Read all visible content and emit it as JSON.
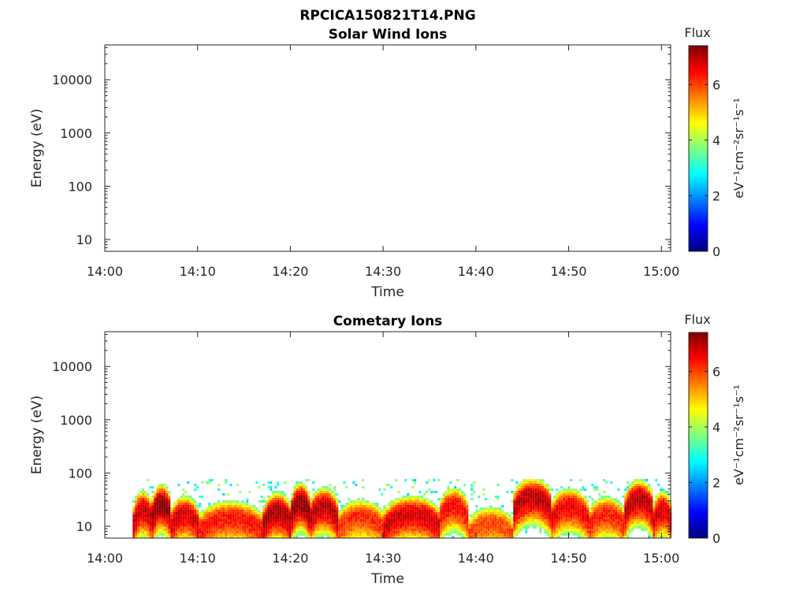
{
  "figure": {
    "title": "RPCICA150821T14.PNG"
  },
  "chart_data": [
    {
      "type": "heatmap",
      "title": "Solar Wind Ions",
      "xlabel": "Time",
      "ylabel": "Energy (eV)",
      "x_ticks": [
        "14:00",
        "14:10",
        "14:20",
        "14:30",
        "14:40",
        "14:50",
        "15:00"
      ],
      "x_range": [
        "14:00",
        "15:01"
      ],
      "y_scale": "log",
      "y_ticks": [
        10,
        100,
        1000,
        10000
      ],
      "y_tick_labels": [
        "10",
        "100",
        "1000",
        "10000"
      ],
      "y_range": [
        6,
        45000
      ],
      "colorbar": {
        "title": "Flux",
        "label": "eV⁻¹cm⁻²sr⁻¹s⁻¹",
        "range": [
          0,
          7.4
        ],
        "ticks": [
          0,
          2,
          4,
          6
        ],
        "colormap": "jet"
      },
      "bands": []
    },
    {
      "type": "heatmap",
      "title": "Cometary Ions",
      "xlabel": "Time",
      "ylabel": "Energy (eV)",
      "x_ticks": [
        "14:00",
        "14:10",
        "14:20",
        "14:30",
        "14:40",
        "14:50",
        "15:00"
      ],
      "x_range": [
        "14:00",
        "15:01"
      ],
      "y_scale": "log",
      "y_ticks": [
        10,
        100,
        1000,
        10000
      ],
      "y_tick_labels": [
        "10",
        "100",
        "1000",
        "10000"
      ],
      "y_range": [
        6,
        45000
      ],
      "colorbar": {
        "title": "Flux",
        "label": "eV⁻¹cm⁻²sr⁻¹s⁻¹",
        "range": [
          0,
          7.4
        ],
        "ticks": [
          0,
          2,
          4,
          6
        ],
        "colormap": "jet"
      },
      "data_start": "14:03",
      "data_end": "15:01",
      "noise_max_energy_ev": 80,
      "bands": [
        {
          "start": "14:03",
          "end": "14:05",
          "peak_energy_ev": 22,
          "peak_flux": 6.9
        },
        {
          "start": "14:05",
          "end": "14:07",
          "peak_energy_ev": 28,
          "peak_flux": 7.3
        },
        {
          "start": "14:07",
          "end": "14:10",
          "peak_energy_ev": 18,
          "peak_flux": 6.8
        },
        {
          "start": "14:10",
          "end": "14:17",
          "peak_energy_ev": 15,
          "peak_flux": 6.4
        },
        {
          "start": "14:17",
          "end": "14:20",
          "peak_energy_ev": 20,
          "peak_flux": 7.1
        },
        {
          "start": "14:20",
          "end": "14:22",
          "peak_energy_ev": 30,
          "peak_flux": 7.3
        },
        {
          "start": "14:22",
          "end": "14:25",
          "peak_energy_ev": 25,
          "peak_flux": 7.0
        },
        {
          "start": "14:25",
          "end": "14:30",
          "peak_energy_ev": 16,
          "peak_flux": 6.2
        },
        {
          "start": "14:30",
          "end": "14:36",
          "peak_energy_ev": 18,
          "peak_flux": 6.8
        },
        {
          "start": "14:36",
          "end": "14:39",
          "peak_energy_ev": 26,
          "peak_flux": 6.5
        },
        {
          "start": "14:39",
          "end": "14:44",
          "peak_energy_ev": 12,
          "peak_flux": 6.0
        },
        {
          "start": "14:44",
          "end": "14:48",
          "peak_energy_ev": 38,
          "peak_flux": 7.0
        },
        {
          "start": "14:48",
          "end": "14:52",
          "peak_energy_ev": 25,
          "peak_flux": 6.6
        },
        {
          "start": "14:52",
          "end": "14:56",
          "peak_energy_ev": 18,
          "peak_flux": 6.3
        },
        {
          "start": "14:56",
          "end": "14:59",
          "peak_energy_ev": 35,
          "peak_flux": 7.0
        },
        {
          "start": "14:59",
          "end": "15:01",
          "peak_energy_ev": 22,
          "peak_flux": 6.8
        }
      ]
    }
  ]
}
